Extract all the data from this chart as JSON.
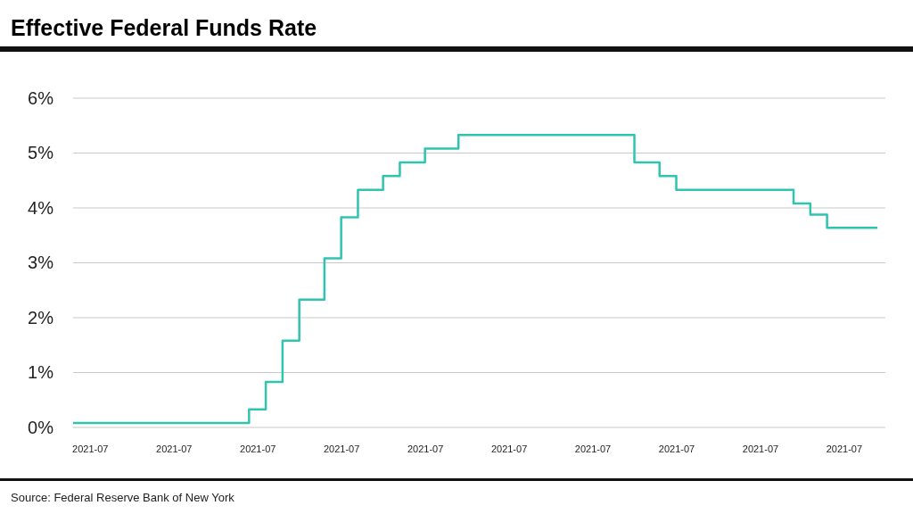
{
  "chart_data": {
    "type": "step",
    "title": "Effective Federal Funds Rate",
    "categories": [
      null,
      null,
      "2021-07",
      null,
      null,
      null,
      null,
      null,
      null,
      null,
      null,
      null,
      "2021-07",
      null,
      null,
      null,
      null,
      null,
      null,
      null,
      null,
      null,
      "2021-07",
      null,
      null,
      null,
      null,
      null,
      null,
      null,
      null,
      null,
      "2021-07",
      null,
      null,
      null,
      null,
      null,
      null,
      null,
      null,
      null,
      "2021-07",
      null,
      null,
      null,
      null,
      null,
      null,
      null,
      null,
      null,
      "2021-07",
      null,
      null,
      null,
      null,
      null,
      null,
      null,
      null,
      null,
      "2021-07",
      null,
      null,
      null,
      null,
      null,
      null,
      null,
      null,
      null,
      "2021-07",
      null,
      null,
      null,
      null,
      null,
      null,
      null,
      null,
      null,
      "2021-07",
      null,
      null,
      null,
      null,
      null,
      null,
      null,
      null,
      null,
      "2021-07",
      null,
      null,
      null,
      null
    ],
    "series": [
      {
        "color": "#2ec4b0",
        "values": [
          0.08,
          0.08,
          0.08,
          0.08,
          0.08,
          0.08,
          0.08,
          0.08,
          0.08,
          0.08,
          0.08,
          0.08,
          0.08,
          0.08,
          0.08,
          0.08,
          0.08,
          0.08,
          0.08,
          0.08,
          0.08,
          0.33,
          0.33,
          0.83,
          0.83,
          1.58,
          1.58,
          2.33,
          2.33,
          2.33,
          3.08,
          3.08,
          3.83,
          3.83,
          4.33,
          4.33,
          4.33,
          4.58,
          4.58,
          4.83,
          4.83,
          4.83,
          5.08,
          5.08,
          5.08,
          5.08,
          5.33,
          5.33,
          5.33,
          5.33,
          5.33,
          5.33,
          5.33,
          5.33,
          5.33,
          5.33,
          5.33,
          5.33,
          5.33,
          5.33,
          5.33,
          5.33,
          5.33,
          5.33,
          5.33,
          5.33,
          5.33,
          4.83,
          4.83,
          4.83,
          4.58,
          4.58,
          4.33,
          4.33,
          4.33,
          4.33,
          4.33,
          4.33,
          4.33,
          4.33,
          4.33,
          4.33,
          4.33,
          4.33,
          4.33,
          4.33,
          4.08,
          4.08,
          3.88,
          3.88,
          3.64,
          3.64,
          3.64,
          3.64,
          3.64,
          3.64,
          3.64
        ]
      }
    ],
    "ylim": [
      0,
      6
    ],
    "yticks": [
      {
        "value": 0,
        "label": "0%"
      },
      {
        "value": 1,
        "label": "1%"
      },
      {
        "value": 2,
        "label": "2%"
      },
      {
        "value": 3,
        "label": "3%"
      },
      {
        "value": 4,
        "label": "4%"
      },
      {
        "value": 5,
        "label": "5%"
      },
      {
        "value": 6,
        "label": "6%"
      }
    ],
    "grid": "y",
    "line_style": "solid",
    "annotations": [
      "Source: Federal Reserve Bank of New York"
    ]
  }
}
